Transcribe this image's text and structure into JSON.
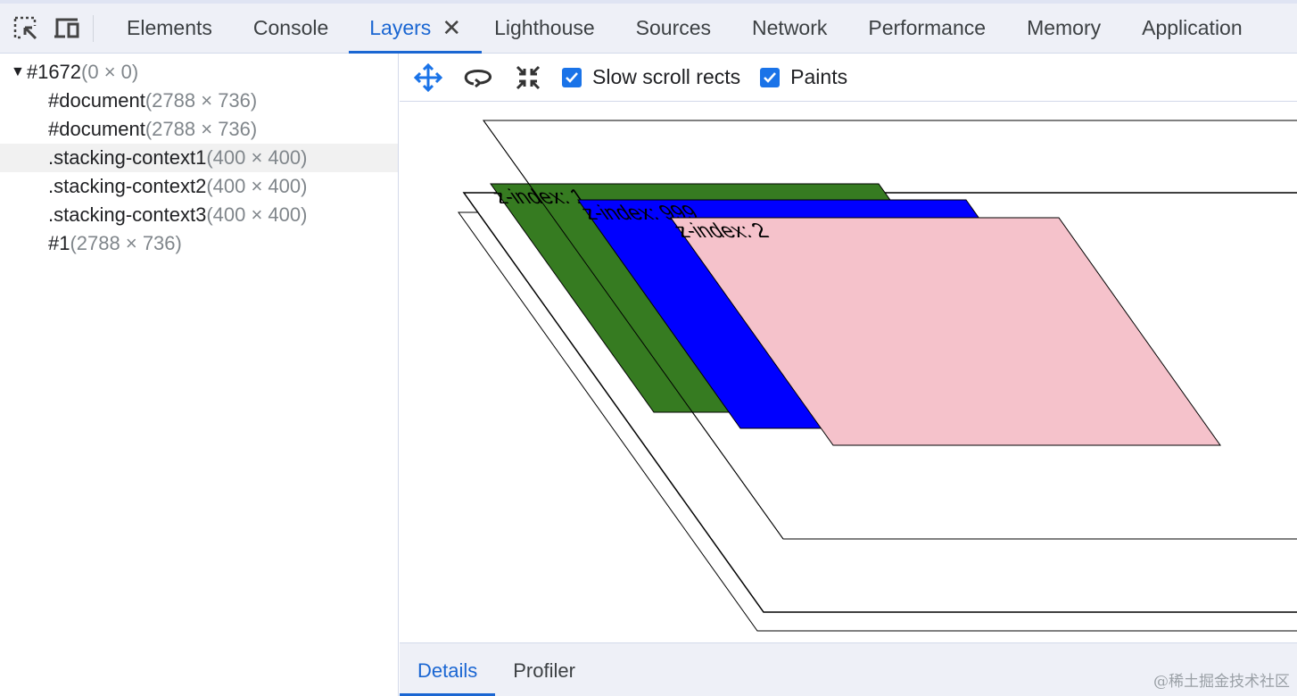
{
  "tabs": [
    {
      "label": "Elements"
    },
    {
      "label": "Console"
    },
    {
      "label": "Layers",
      "active": true
    },
    {
      "label": "Lighthouse"
    },
    {
      "label": "Sources"
    },
    {
      "label": "Network"
    },
    {
      "label": "Performance"
    },
    {
      "label": "Memory"
    },
    {
      "label": "Application"
    }
  ],
  "layer_tree": [
    {
      "name": "#1672",
      "size": "(0 × 0)",
      "expanded": true
    },
    {
      "name": "#document",
      "size": "(2788 × 736)"
    },
    {
      "name": "#document",
      "size": "(2788 × 736)"
    },
    {
      "name": ".stacking-context1",
      "size": "(400 × 400)",
      "hovered": true
    },
    {
      "name": ".stacking-context2",
      "size": "(400 × 400)"
    },
    {
      "name": ".stacking-context3",
      "size": "(400 × 400)"
    },
    {
      "name": "#1",
      "size": "(2788 × 736)"
    }
  ],
  "toolbar": {
    "slow_scroll_rects": "Slow scroll rects",
    "slow_scroll_checked": true,
    "paints": "Paints",
    "paints_checked": true
  },
  "canvas": {
    "labels": [
      "z-index: 1",
      "z-index: 999",
      "z-index: 2"
    ],
    "colors": {
      "green": "#367b21",
      "blue": "#0000ff",
      "pink": "#f5c2cb"
    }
  },
  "bottom_tabs": [
    {
      "label": "Details",
      "active": true
    },
    {
      "label": "Profiler"
    }
  ],
  "watermark": "@稀土掘金技术社区",
  "accent": "#1a66d2"
}
